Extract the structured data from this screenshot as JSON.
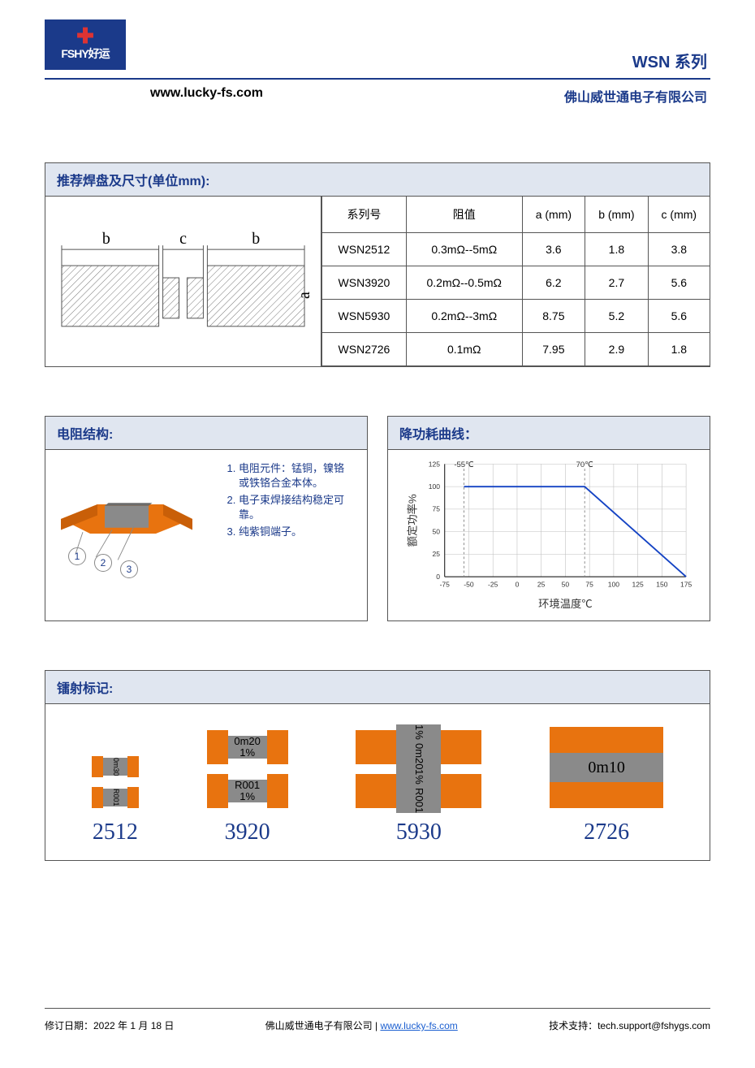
{
  "header": {
    "logo_line1": "✚",
    "logo_line2": "FSHY好运",
    "series": "WSN 系列",
    "url": "www.lucky-fs.com",
    "company": "佛山威世通电子有限公司"
  },
  "pad_table": {
    "title": "推荐焊盘及尺寸(单位mm):",
    "headers": [
      "系列号",
      "阻值",
      "a (mm)",
      "b (mm)",
      "c (mm)"
    ],
    "rows": [
      [
        "WSN2512",
        "0.3mΩ--5mΩ",
        "3.6",
        "1.8",
        "3.8"
      ],
      [
        "WSN3920",
        "0.2mΩ--0.5mΩ",
        "6.2",
        "2.7",
        "5.6"
      ],
      [
        "WSN5930",
        "0.2mΩ--3mΩ",
        "8.75",
        "5.2",
        "5.6"
      ],
      [
        "WSN2726",
        "0.1mΩ",
        "7.95",
        "2.9",
        "1.8"
      ]
    ],
    "diagram": {
      "labels": {
        "b": "b",
        "c": "c",
        "a": "a"
      }
    }
  },
  "structure": {
    "title": "电阻结构:",
    "items": [
      "电阻元件：锰铜，镍铬或铁铬合金本体。",
      "电子束焊接结构稳定可靠。",
      "纯紫铜端子。"
    ],
    "callouts": [
      "1",
      "2",
      "3"
    ],
    "colors": {
      "terminal": "#e8730f",
      "body": "#8a8a8a",
      "edge": "#5a5a5a"
    }
  },
  "derating": {
    "title": "降功耗曲线：",
    "xlabel": "环境温度℃",
    "ylabel": "额定功率%",
    "x_ticks": [
      -75,
      -50,
      -25,
      0,
      25,
      50,
      75,
      100,
      125,
      150,
      175
    ],
    "y_ticks": [
      0,
      25,
      50,
      75,
      100,
      125
    ],
    "markers": [
      {
        "label": "-55℃",
        "x": -55
      },
      {
        "label": "70℃",
        "x": 70
      }
    ],
    "line": [
      {
        "x": -55,
        "y": 100
      },
      {
        "x": 70,
        "y": 100
      },
      {
        "x": 175,
        "y": 0
      }
    ],
    "line_color": "#1443c4",
    "grid_color": "#bfbfbf",
    "axis_color": "#000000",
    "vline_color": "#888888"
  },
  "laser": {
    "title": "镭射标记:",
    "items": [
      {
        "size": "2512",
        "cls": "c2512",
        "chips": [
          {
            "text": "0m30"
          },
          {
            "text": "R001"
          }
        ]
      },
      {
        "size": "3920",
        "cls": "c3920",
        "chips": [
          {
            "line1": "0m20",
            "line2": "1%"
          },
          {
            "line1": "R001",
            "line2": "1%"
          }
        ]
      },
      {
        "size": "5930",
        "cls": "c5930",
        "chips": [
          {
            "col1": "1%",
            "col2": "0m20"
          },
          {
            "col1": "1%",
            "col2": "R001"
          }
        ]
      },
      {
        "size": "2726",
        "cls": "c2726",
        "chips": [
          {
            "text": "0m10"
          }
        ]
      }
    ]
  },
  "footer": {
    "rev": "修订日期：2022 年 1 月 18 日",
    "mid_pre": "佛山威世通电子有限公司 | ",
    "mid_link": "www.lucky-fs.com",
    "support": "技术支持：tech.support@fshygs.com"
  }
}
